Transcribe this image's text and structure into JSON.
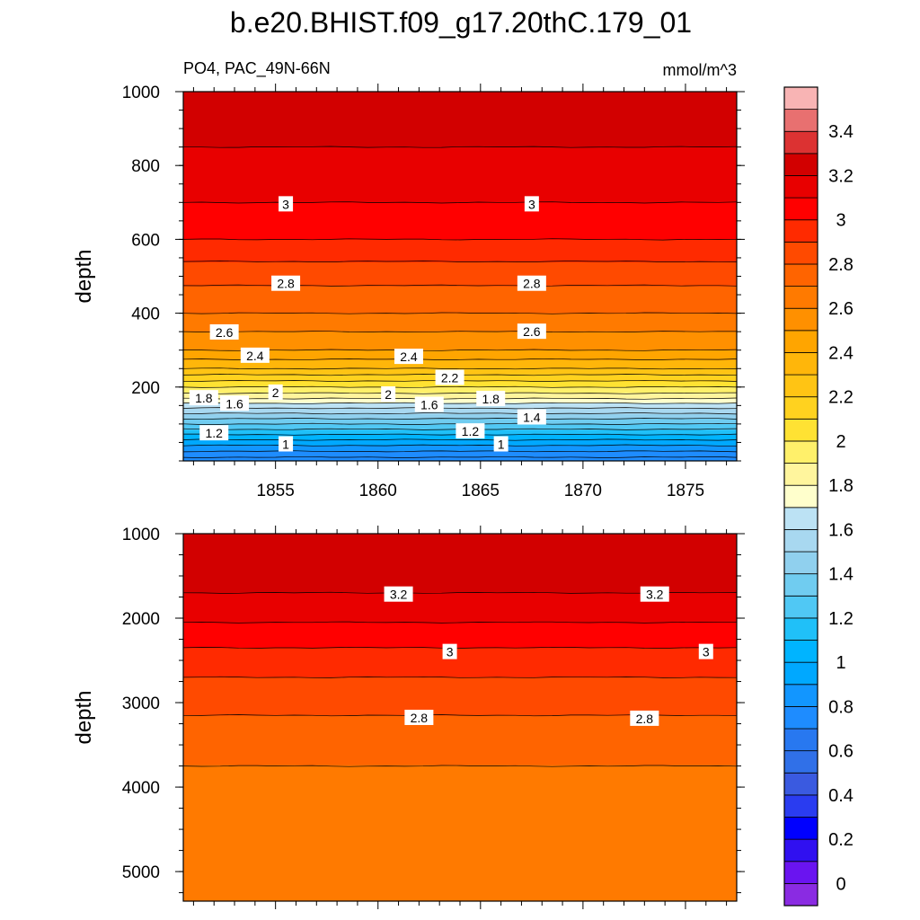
{
  "title": "b.e20.BHIST.f09_g17.20thC.179_01",
  "left_subtitle": "PO4, PAC_49N-66N",
  "right_subtitle": "mmol/m^3",
  "chart_data": [
    {
      "type": "heatmap",
      "panel": "upper",
      "xlabel": "",
      "ylabel": "depth",
      "xlim": [
        1850.5,
        1877.5
      ],
      "ylim": [
        1000,
        0
      ],
      "xticks": [
        1855,
        1860,
        1865,
        1870,
        1875
      ],
      "yticks": [
        200,
        400,
        600,
        800,
        1000
      ],
      "profile": [
        [
          10,
          0.7
        ],
        [
          50,
          0.95
        ],
        [
          100,
          1.3
        ],
        [
          150,
          1.65
        ],
        [
          175,
          1.85
        ],
        [
          200,
          2.0
        ],
        [
          250,
          2.3
        ],
        [
          300,
          2.5
        ],
        [
          350,
          2.6
        ],
        [
          400,
          2.7
        ],
        [
          475,
          2.8
        ],
        [
          540,
          2.9
        ],
        [
          600,
          3.0
        ],
        [
          700,
          3.1
        ],
        [
          800,
          3.15
        ],
        [
          850,
          3.2
        ],
        [
          1000,
          3.25
        ]
      ],
      "contour_labels": [
        {
          "text": "1",
          "x": 1855.5,
          "y": 45
        },
        {
          "text": "1",
          "x": 1866.0,
          "y": 45
        },
        {
          "text": "1.2",
          "x": 1852.0,
          "y": 75
        },
        {
          "text": "1.2",
          "x": 1864.5,
          "y": 80
        },
        {
          "text": "1.4",
          "x": 1867.5,
          "y": 118
        },
        {
          "text": "1.6",
          "x": 1853.0,
          "y": 155
        },
        {
          "text": "1.6",
          "x": 1862.5,
          "y": 152
        },
        {
          "text": "1.8",
          "x": 1851.5,
          "y": 170
        },
        {
          "text": "1.8",
          "x": 1865.5,
          "y": 168
        },
        {
          "text": "2",
          "x": 1855.0,
          "y": 185
        },
        {
          "text": "2",
          "x": 1860.5,
          "y": 180
        },
        {
          "text": "2.2",
          "x": 1863.5,
          "y": 225
        },
        {
          "text": "2.4",
          "x": 1854.0,
          "y": 285
        },
        {
          "text": "2.4",
          "x": 1861.5,
          "y": 282
        },
        {
          "text": "2.6",
          "x": 1852.5,
          "y": 348
        },
        {
          "text": "2.6",
          "x": 1867.5,
          "y": 350
        },
        {
          "text": "2.8",
          "x": 1855.5,
          "y": 480
        },
        {
          "text": "2.8",
          "x": 1867.5,
          "y": 480
        },
        {
          "text": "3",
          "x": 1855.5,
          "y": 695
        },
        {
          "text": "3",
          "x": 1867.5,
          "y": 695
        }
      ]
    },
    {
      "type": "heatmap",
      "panel": "lower",
      "xlabel": "",
      "ylabel": "depth",
      "xlim": [
        1850.5,
        1877.5
      ],
      "ylim": [
        1000,
        5350
      ],
      "xticks": [],
      "yticks": [
        1000,
        2000,
        3000,
        4000,
        5000
      ],
      "profile": [
        [
          1000,
          3.25
        ],
        [
          1700,
          3.2
        ],
        [
          2050,
          3.1
        ],
        [
          2350,
          3.0
        ],
        [
          2700,
          2.9
        ],
        [
          3150,
          2.8
        ],
        [
          3750,
          2.7
        ],
        [
          5350,
          2.65
        ]
      ],
      "contour_labels": [
        {
          "text": "3.2",
          "x": 1861.0,
          "y": 1720
        },
        {
          "text": "3.2",
          "x": 1873.5,
          "y": 1720
        },
        {
          "text": "3",
          "x": 1863.5,
          "y": 2400
        },
        {
          "text": "3",
          "x": 1876.0,
          "y": 2400
        },
        {
          "text": "2.8",
          "x": 1862.0,
          "y": 3180
        },
        {
          "text": "2.8",
          "x": 1873.0,
          "y": 3190
        }
      ]
    },
    {
      "type": "colorbar",
      "levels": [
        0,
        0.1,
        0.2,
        0.3,
        0.4,
        0.5,
        0.6,
        0.7,
        0.8,
        0.9,
        1.0,
        1.1,
        1.2,
        1.3,
        1.4,
        1.5,
        1.6,
        1.7,
        1.8,
        1.9,
        2.0,
        2.1,
        2.2,
        2.3,
        2.4,
        2.5,
        2.6,
        2.7,
        2.8,
        2.9,
        3.0,
        3.1,
        3.2,
        3.3,
        3.4,
        3.5
      ],
      "labels": [
        "0",
        "0.2",
        "0.4",
        "0.6",
        "0.8",
        "1",
        "1.2",
        "1.4",
        "1.6",
        "1.8",
        "2",
        "2.2",
        "2.4",
        "2.6",
        "2.8",
        "3",
        "3.2",
        "3.4"
      ],
      "colors": [
        "#8a2be2",
        "#6a14f0",
        "#3010f0",
        "#0000ff",
        "#2a3cf0",
        "#3a5ae0",
        "#3070e8",
        "#2878f0",
        "#1e8cff",
        "#1296ff",
        "#00a8ff",
        "#00b4ff",
        "#20c0f8",
        "#50c8f4",
        "#70ccf0",
        "#90d0ee",
        "#a8d8f0",
        "#bce2f4",
        "#ffffcc",
        "#fff59d",
        "#fff06a",
        "#ffe233",
        "#ffd21f",
        "#ffc414",
        "#ffb60a",
        "#ffa500",
        "#ff9000",
        "#ff7a00",
        "#ff6400",
        "#ff4a00",
        "#ff2a00",
        "#ff0000",
        "#e80000",
        "#d20000",
        "#dc3232",
        "#e87070",
        "#f8b4b4"
      ]
    }
  ]
}
